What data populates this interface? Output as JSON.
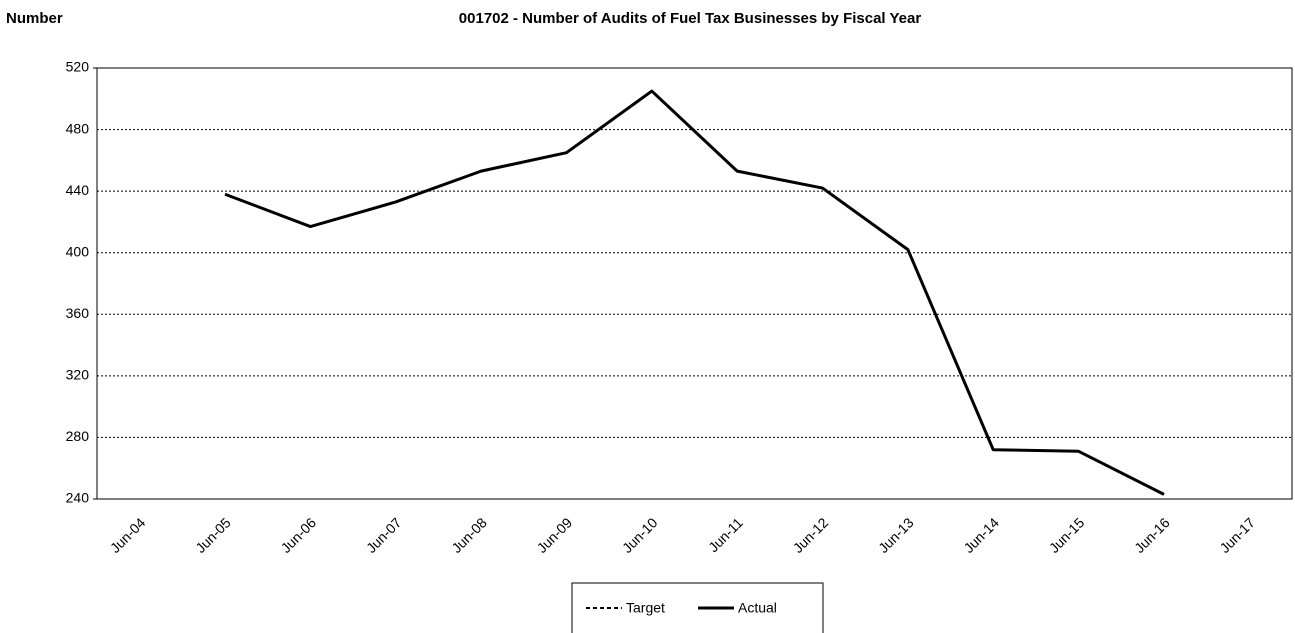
{
  "chart_data": {
    "type": "line",
    "title": "001702 - Number of Audits of Fuel Tax Businesses by Fiscal Year",
    "y_label": "Number",
    "categories": [
      "Jun-04",
      "Jun-05",
      "Jun-06",
      "Jun-07",
      "Jun-08",
      "Jun-09",
      "Jun-10",
      "Jun-11",
      "Jun-12",
      "Jun-13",
      "Jun-14",
      "Jun-15",
      "Jun-16",
      "Jun-17"
    ],
    "series": [
      {
        "name": "Target",
        "color": "#000000",
        "line_style": "dashed",
        "values": [
          null,
          null,
          null,
          null,
          null,
          null,
          null,
          null,
          null,
          null,
          null,
          null,
          null,
          null
        ]
      },
      {
        "name": "Actual",
        "color": "#000000",
        "line_style": "solid",
        "values": [
          null,
          438,
          417,
          433,
          453,
          465,
          505,
          453,
          442,
          402,
          272,
          271,
          243,
          null
        ]
      }
    ],
    "ylim": [
      240,
      520
    ],
    "yticks": [
      240,
      280,
      320,
      360,
      400,
      440,
      480,
      520
    ],
    "grid": true,
    "legend": "bottom"
  }
}
